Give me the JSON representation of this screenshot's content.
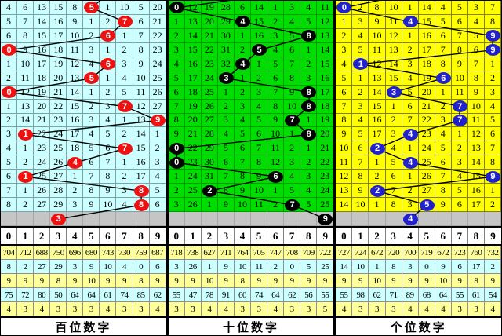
{
  "digits_header": [
    "0",
    "1",
    "2",
    "3",
    "4",
    "5",
    "6",
    "7",
    "8",
    "9"
  ],
  "panels": [
    {
      "key": "hundreds",
      "footer_label": "百位数字",
      "colors": {
        "bg": "#ccffff",
        "grid": "#7fa2a6",
        "circle": "#ee1111"
      },
      "prev_col": 6,
      "rows": [
        {
          "cells": [
            "4",
            "6",
            "13",
            "15",
            "8",
            "",
            "1",
            "10",
            "5",
            "20"
          ],
          "circle_col": 5,
          "circle_label": "5"
        },
        {
          "cells": [
            "5",
            "7",
            "14",
            "16",
            "9",
            "1",
            "2",
            "",
            "6",
            "21"
          ],
          "circle_col": 7,
          "circle_label": "7"
        },
        {
          "cells": [
            "6",
            "8",
            "15",
            "17",
            "10",
            "2",
            "",
            "1",
            "7",
            "22"
          ],
          "circle_col": 6,
          "circle_label": "6"
        },
        {
          "cells": [
            "",
            "9",
            "16",
            "18",
            "11",
            "3",
            "1",
            "2",
            "8",
            "23"
          ],
          "circle_col": 0,
          "circle_label": "0"
        },
        {
          "cells": [
            "1",
            "10",
            "17",
            "19",
            "12",
            "4",
            "",
            "3",
            "9",
            "24"
          ],
          "circle_col": 6,
          "circle_label": "6"
        },
        {
          "cells": [
            "2",
            "11",
            "18",
            "20",
            "13",
            "",
            "1",
            "4",
            "10",
            "25"
          ],
          "circle_col": 5,
          "circle_label": "5"
        },
        {
          "cells": [
            "",
            "12",
            "19",
            "21",
            "14",
            "1",
            "2",
            "5",
            "11",
            "26"
          ],
          "circle_col": 0,
          "circle_label": "0"
        },
        {
          "cells": [
            "1",
            "13",
            "20",
            "22",
            "15",
            "2",
            "3",
            "",
            "12",
            "27"
          ],
          "circle_col": 7,
          "circle_label": "7"
        },
        {
          "cells": [
            "2",
            "14",
            "21",
            "23",
            "16",
            "3",
            "4",
            "1",
            "13",
            ""
          ],
          "circle_col": 9,
          "circle_label": "9"
        },
        {
          "cells": [
            "3",
            "",
            "22",
            "24",
            "17",
            "4",
            "5",
            "2",
            "14",
            "1"
          ],
          "circle_col": 1,
          "circle_label": "1"
        },
        {
          "cells": [
            "4",
            "1",
            "23",
            "25",
            "18",
            "5",
            "6",
            "",
            "15",
            "2"
          ],
          "circle_col": 7,
          "circle_label": "7"
        },
        {
          "cells": [
            "5",
            "2",
            "24",
            "26",
            "",
            "6",
            "7",
            "1",
            "16",
            "3"
          ],
          "circle_col": 4,
          "circle_label": "4"
        },
        {
          "cells": [
            "6",
            "",
            "25",
            "27",
            "1",
            "7",
            "8",
            "2",
            "17",
            "4"
          ],
          "circle_col": 1,
          "circle_label": "1"
        },
        {
          "cells": [
            "7",
            "1",
            "26",
            "28",
            "2",
            "8",
            "9",
            "3",
            "",
            "5"
          ],
          "circle_col": 8,
          "circle_label": "8"
        },
        {
          "cells": [
            "8",
            "2",
            "27",
            "29",
            "3",
            "9",
            "10",
            "4",
            "",
            "6"
          ],
          "circle_col": 8,
          "circle_label": "8"
        }
      ],
      "pending": {
        "circle_col": 3,
        "circle_label": "3"
      },
      "stats": [
        [
          "704",
          "712",
          "688",
          "750",
          "696",
          "680",
          "743",
          "730",
          "759",
          "687"
        ],
        [
          "8",
          "2",
          "27",
          "29",
          "3",
          "9",
          "10",
          "4",
          "0",
          "6"
        ],
        [
          "9",
          "9",
          "9",
          "8",
          "9",
          "10",
          "9",
          "9",
          "8",
          "9"
        ],
        [
          "75",
          "72",
          "80",
          "50",
          "64",
          "64",
          "61",
          "74",
          "85",
          "62"
        ],
        [
          "4",
          "3",
          "4",
          "3",
          "3",
          "3",
          "4",
          "3",
          "3",
          "4"
        ]
      ]
    },
    {
      "key": "tens",
      "footer_label": "十位数字",
      "colors": {
        "bg": "#00dd00",
        "grid": "#009900",
        "circle": "#000000"
      },
      "prev_col": 6,
      "rows": [
        {
          "cells": [
            "",
            "12",
            "19",
            "28",
            "6",
            "14",
            "1",
            "3",
            "4",
            "11"
          ],
          "circle_col": 0,
          "circle_label": "0"
        },
        {
          "cells": [
            "1",
            "13",
            "20",
            "29",
            "",
            "15",
            "2",
            "4",
            "5",
            "12"
          ],
          "circle_col": 4,
          "circle_label": "4"
        },
        {
          "cells": [
            "2",
            "14",
            "21",
            "30",
            "1",
            "16",
            "3",
            "5",
            "",
            "13"
          ],
          "circle_col": 8,
          "circle_label": "8"
        },
        {
          "cells": [
            "3",
            "15",
            "22",
            "31",
            "2",
            "",
            "4",
            "6",
            "1",
            "14"
          ],
          "circle_col": 5,
          "circle_label": "5"
        },
        {
          "cells": [
            "4",
            "16",
            "23",
            "32",
            "",
            "1",
            "5",
            "7",
            "2",
            "15"
          ],
          "circle_col": 4,
          "circle_label": "4"
        },
        {
          "cells": [
            "5",
            "17",
            "24",
            "",
            "1",
            "2",
            "6",
            "8",
            "3",
            "16"
          ],
          "circle_col": 3,
          "circle_label": "3"
        },
        {
          "cells": [
            "6",
            "18",
            "25",
            "1",
            "2",
            "3",
            "7",
            "9",
            "",
            "17"
          ],
          "circle_col": 8,
          "circle_label": "8"
        },
        {
          "cells": [
            "7",
            "19",
            "26",
            "2",
            "3",
            "4",
            "8",
            "10",
            "",
            "18"
          ],
          "circle_col": 8,
          "circle_label": "8"
        },
        {
          "cells": [
            "8",
            "20",
            "27",
            "3",
            "4",
            "5",
            "9",
            "",
            "1",
            "19"
          ],
          "circle_col": 7,
          "circle_label": "7"
        },
        {
          "cells": [
            "9",
            "21",
            "28",
            "4",
            "5",
            "6",
            "10",
            "1",
            "",
            "20"
          ],
          "circle_col": 8,
          "circle_label": "8"
        },
        {
          "cells": [
            "",
            "22",
            "29",
            "5",
            "6",
            "7",
            "11",
            "2",
            "1",
            "21"
          ],
          "circle_col": 0,
          "circle_label": "0"
        },
        {
          "cells": [
            "",
            "23",
            "30",
            "6",
            "7",
            "8",
            "12",
            "3",
            "2",
            "22"
          ],
          "circle_col": 0,
          "circle_label": "0"
        },
        {
          "cells": [
            "1",
            "24",
            "31",
            "7",
            "8",
            "9",
            "",
            "4",
            "3",
            "23"
          ],
          "circle_col": 6,
          "circle_label": "6"
        },
        {
          "cells": [
            "2",
            "25",
            "",
            "8",
            "9",
            "10",
            "1",
            "5",
            "4",
            "24"
          ],
          "circle_col": 2,
          "circle_label": "2"
        },
        {
          "cells": [
            "3",
            "26",
            "1",
            "9",
            "10",
            "11",
            "2",
            "",
            "5",
            "25"
          ],
          "circle_col": 7,
          "circle_label": "7"
        }
      ],
      "pending": {
        "circle_col": 9,
        "circle_label": "9"
      },
      "stats": [
        [
          "718",
          "738",
          "627",
          "711",
          "764",
          "705",
          "747",
          "708",
          "709",
          "722"
        ],
        [
          "3",
          "26",
          "1",
          "9",
          "10",
          "11",
          "2",
          "0",
          "5",
          "25"
        ],
        [
          "9",
          "9",
          "10",
          "9",
          "8",
          "9",
          "9",
          "9",
          "9",
          "9"
        ],
        [
          "55",
          "47",
          "78",
          "91",
          "60",
          "74",
          "64",
          "62",
          "56",
          "55"
        ],
        [
          "3",
          "3",
          "4",
          "4",
          "3",
          "3",
          "4",
          "3",
          "3",
          "5"
        ]
      ]
    },
    {
      "key": "units",
      "footer_label": "个位数字",
      "colors": {
        "bg": "#ffff00",
        "grid": "#80801e",
        "circle": "#2222cc"
      },
      "prev_col": 4,
      "rows": [
        {
          "cells": [
            "",
            "2",
            "8",
            "10",
            "1",
            "14",
            "4",
            "5",
            "3",
            "7"
          ],
          "circle_col": 0,
          "circle_label": "0"
        },
        {
          "cells": [
            "1",
            "3",
            "9",
            "11",
            "",
            "15",
            "5",
            "6",
            "4",
            "8"
          ],
          "circle_col": 4,
          "circle_label": "4"
        },
        {
          "cells": [
            "2",
            "4",
            "10",
            "12",
            "1",
            "16",
            "6",
            "7",
            "5",
            ""
          ],
          "circle_col": 9,
          "circle_label": "9"
        },
        {
          "cells": [
            "3",
            "5",
            "11",
            "13",
            "2",
            "17",
            "7",
            "8",
            "6",
            ""
          ],
          "circle_col": 9,
          "circle_label": "9"
        },
        {
          "cells": [
            "4",
            "",
            "12",
            "14",
            "3",
            "18",
            "8",
            "9",
            "7",
            "1"
          ],
          "circle_col": 1,
          "circle_label": "1"
        },
        {
          "cells": [
            "5",
            "1",
            "13",
            "15",
            "4",
            "19",
            "",
            "10",
            "8",
            "2"
          ],
          "circle_col": 6,
          "circle_label": "6"
        },
        {
          "cells": [
            "6",
            "2",
            "14",
            "",
            "5",
            "20",
            "1",
            "11",
            "9",
            "3"
          ],
          "circle_col": 3,
          "circle_label": "3"
        },
        {
          "cells": [
            "7",
            "3",
            "15",
            "1",
            "6",
            "21",
            "2",
            "",
            "10",
            "4"
          ],
          "circle_col": 7,
          "circle_label": "7"
        },
        {
          "cells": [
            "8",
            "4",
            "16",
            "2",
            "7",
            "22",
            "3",
            "",
            "11",
            "5"
          ],
          "circle_col": 7,
          "circle_label": "7"
        },
        {
          "cells": [
            "9",
            "5",
            "17",
            "3",
            "",
            "23",
            "4",
            "1",
            "12",
            "6"
          ],
          "circle_col": 4,
          "circle_label": "4"
        },
        {
          "cells": [
            "10",
            "6",
            "",
            "4",
            "1",
            "24",
            "5",
            "2",
            "13",
            "7"
          ],
          "circle_col": 2,
          "circle_label": "2"
        },
        {
          "cells": [
            "11",
            "7",
            "1",
            "5",
            "",
            "25",
            "6",
            "3",
            "14",
            "8"
          ],
          "circle_col": 4,
          "circle_label": "4"
        },
        {
          "cells": [
            "12",
            "8",
            "2",
            "6",
            "1",
            "26",
            "7",
            "4",
            "15",
            ""
          ],
          "circle_col": 9,
          "circle_label": "9"
        },
        {
          "cells": [
            "13",
            "9",
            "",
            "7",
            "2",
            "27",
            "8",
            "5",
            "16",
            "1"
          ],
          "circle_col": 2,
          "circle_label": "2"
        },
        {
          "cells": [
            "14",
            "10",
            "1",
            "8",
            "3",
            "",
            "9",
            "6",
            "17",
            "2"
          ],
          "circle_col": 5,
          "circle_label": "5"
        }
      ],
      "pending": {
        "circle_col": 4,
        "circle_label": "4"
      },
      "stats": [
        [
          "727",
          "724",
          "672",
          "720",
          "700",
          "719",
          "672",
          "723",
          "760",
          "732"
        ],
        [
          "14",
          "10",
          "1",
          "8",
          "3",
          "0",
          "9",
          "6",
          "17",
          "2"
        ],
        [
          "9",
          "9",
          "10",
          "9",
          "9",
          "9",
          "10",
          "9",
          "8",
          "9"
        ],
        [
          "55",
          "98",
          "62",
          "71",
          "89",
          "68",
          "64",
          "55",
          "61",
          "54"
        ],
        [
          "4",
          "3",
          "3",
          "3",
          "4",
          "4",
          "4",
          "3",
          "3",
          "4"
        ]
      ]
    }
  ],
  "chart_data": {
    "type": "table",
    "sections": [
      {
        "title": "百位数字",
        "column_labels": [
          "0",
          "1",
          "2",
          "3",
          "4",
          "5",
          "6",
          "7",
          "8",
          "9"
        ],
        "drawn_digit_per_row": [
          5,
          7,
          6,
          0,
          6,
          5,
          0,
          7,
          9,
          1,
          7,
          4,
          1,
          8,
          8,
          3
        ]
      },
      {
        "title": "十位数字",
        "column_labels": [
          "0",
          "1",
          "2",
          "3",
          "4",
          "5",
          "6",
          "7",
          "8",
          "9"
        ],
        "drawn_digit_per_row": [
          0,
          4,
          8,
          5,
          4,
          3,
          8,
          8,
          7,
          8,
          0,
          0,
          6,
          2,
          7,
          9
        ]
      },
      {
        "title": "个位数字",
        "column_labels": [
          "0",
          "1",
          "2",
          "3",
          "4",
          "5",
          "6",
          "7",
          "8",
          "9"
        ],
        "drawn_digit_per_row": [
          0,
          4,
          9,
          9,
          1,
          6,
          3,
          7,
          7,
          4,
          2,
          4,
          9,
          2,
          5,
          4
        ]
      }
    ]
  }
}
